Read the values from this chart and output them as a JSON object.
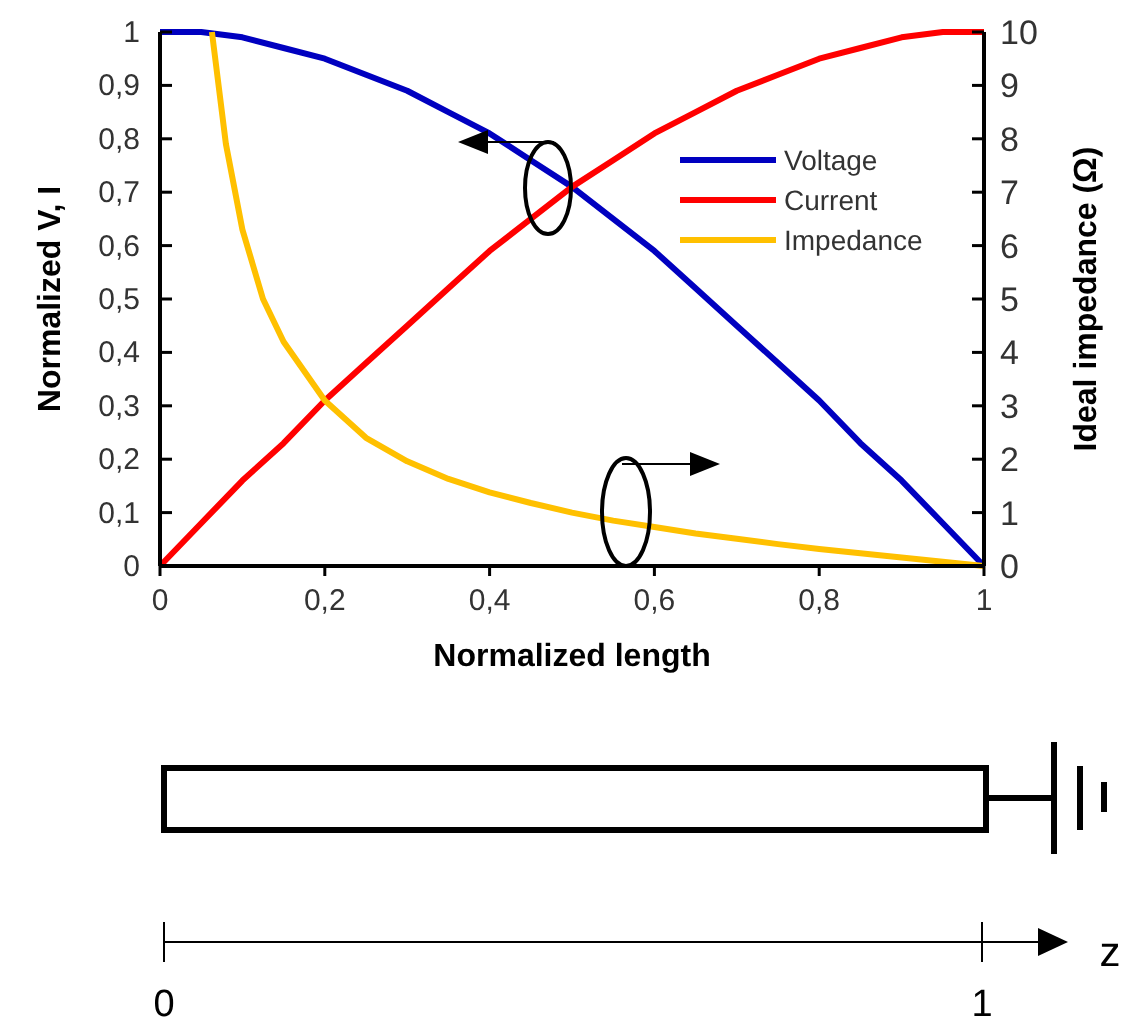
{
  "chart_data": [
    {
      "type": "line",
      "xlabel": "Normalized length",
      "ylabel": "Normalized V, I",
      "y2label": "Ideal impedance (Ω)",
      "x": [
        0,
        0.05,
        0.1,
        0.15,
        0.2,
        0.25,
        0.3,
        0.35,
        0.4,
        0.45,
        0.5,
        0.55,
        0.6,
        0.65,
        0.7,
        0.75,
        0.8,
        0.85,
        0.9,
        0.95,
        1
      ],
      "series": [
        {
          "name": "Voltage",
          "color": "#0000c0",
          "values": [
            1,
            1,
            0.99,
            0.97,
            0.95,
            0.92,
            0.89,
            0.85,
            0.81,
            0.76,
            0.71,
            0.65,
            0.59,
            0.52,
            0.45,
            0.38,
            0.31,
            0.23,
            0.16,
            0.08,
            0
          ]
        },
        {
          "name": "Current",
          "color": "#ff0000",
          "values": [
            0,
            0.08,
            0.16,
            0.23,
            0.31,
            0.38,
            0.45,
            0.52,
            0.59,
            0.65,
            0.71,
            0.76,
            0.81,
            0.85,
            0.89,
            0.92,
            0.95,
            0.97,
            0.99,
            1,
            1
          ]
        },
        {
          "name": "Impedance",
          "color": "#ffc000",
          "axis": "y2",
          "x": [
            0.063,
            0.08,
            0.1,
            0.125,
            0.15,
            0.2,
            0.25,
            0.3,
            0.35,
            0.4,
            0.45,
            0.5,
            0.55,
            0.6,
            0.65,
            0.7,
            0.75,
            0.8,
            0.85,
            0.9,
            0.95,
            1
          ],
          "values": [
            10,
            7.9,
            6.3,
            5.0,
            4.2,
            3.1,
            2.4,
            1.96,
            1.63,
            1.38,
            1.18,
            1.0,
            0.85,
            0.73,
            0.61,
            0.51,
            0.41,
            0.32,
            0.24,
            0.16,
            0.08,
            0
          ]
        }
      ],
      "xlim": [
        0,
        1
      ],
      "xticks": [
        {
          "value": 0,
          "label": "0"
        },
        {
          "value": 0.2,
          "label": "0,2"
        },
        {
          "value": 0.4,
          "label": "0,4"
        },
        {
          "value": 0.6,
          "label": "0,6"
        },
        {
          "value": 0.8,
          "label": "0,8"
        },
        {
          "value": 1,
          "label": "1"
        }
      ],
      "ylim": [
        0,
        1
      ],
      "yticks": [
        {
          "value": 0,
          "label": "0"
        },
        {
          "value": 0.1,
          "label": "0,1"
        },
        {
          "value": 0.2,
          "label": "0,2"
        },
        {
          "value": 0.3,
          "label": "0,3"
        },
        {
          "value": 0.4,
          "label": "0,4"
        },
        {
          "value": 0.5,
          "label": "0,5"
        },
        {
          "value": 0.6,
          "label": "0,6"
        },
        {
          "value": 0.7,
          "label": "0,7"
        },
        {
          "value": 0.8,
          "label": "0,8"
        },
        {
          "value": 0.9,
          "label": "0,9"
        },
        {
          "value": 1,
          "label": "1"
        }
      ],
      "y2lim": [
        0,
        10
      ],
      "y2ticks": [
        0,
        1,
        2,
        3,
        4,
        5,
        6,
        7,
        8,
        9,
        10
      ],
      "legend": "top right",
      "grid": false,
      "marker": "none",
      "line_style": "solid"
    },
    {
      "type": "other",
      "annotations": [
        "0",
        "1",
        "z"
      ]
    }
  ]
}
